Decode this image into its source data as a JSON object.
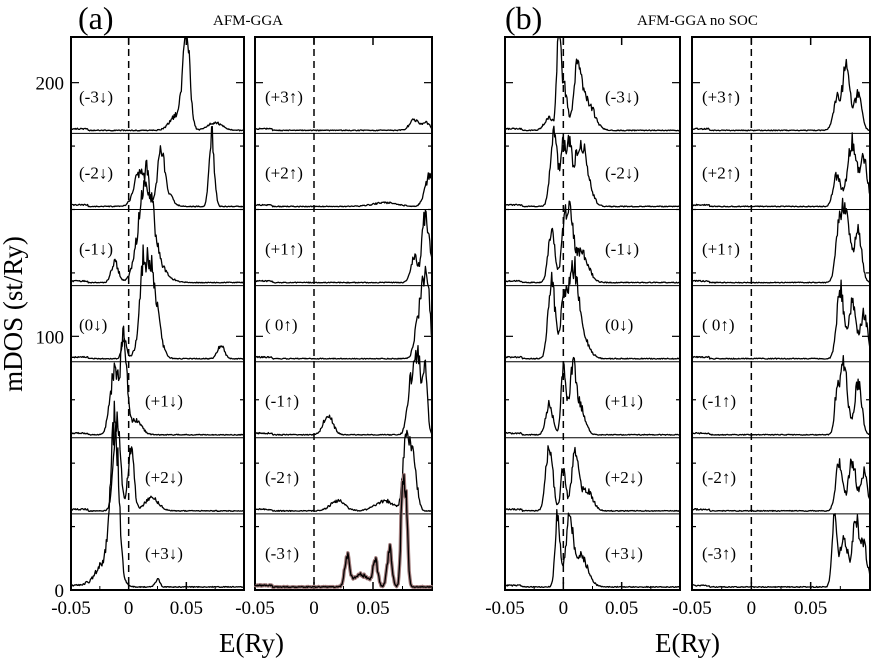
{
  "chart_data": {
    "type": "line",
    "figure_ylabel": "mDOS (st/Ry)",
    "colors": {
      "line": "#000000",
      "overlay": "#a07a7a"
    },
    "y_tick_labels": [
      "0",
      "100",
      "200"
    ],
    "y_ticks": [
      0,
      100,
      200
    ],
    "x_range": [
      -0.05,
      0.1
    ],
    "y_total_range": [
      0,
      218
    ],
    "channel_spacing": 30,
    "x_ticks": [
      -0.05,
      0,
      0.05
    ],
    "x_tick_labels": [
      "-0.05",
      "0",
      "0.05"
    ],
    "groups": [
      {
        "letter": "(a)",
        "title": "AFM-GGA",
        "xlabel": "E(Ry)",
        "panels": [
          {
            "channels": [
              {
                "label": "(-3↓)",
                "baseline": 180,
                "peaks": [
                  [
                    0.05,
                    0.003,
                    38
                  ],
                  [
                    0.042,
                    0.006,
                    6
                  ],
                  [
                    0.075,
                    0.006,
                    3
                  ]
                ]
              },
              {
                "label": "(-2↓)",
                "baseline": 150,
                "peaks": [
                  [
                    0.01,
                    0.005,
                    14
                  ],
                  [
                    0.028,
                    0.003,
                    22
                  ],
                  [
                    0.072,
                    0.0022,
                    28
                  ],
                  [
                    0.035,
                    0.004,
                    4
                  ]
                ]
              },
              {
                "label": "(-1↓)",
                "baseline": 120,
                "peaks": [
                  [
                    0.015,
                    0.006,
                    35
                  ],
                  [
                    -0.012,
                    0.003,
                    8
                  ],
                  [
                    0.02,
                    0.01,
                    8
                  ]
                ]
              },
              {
                "label": "(0↓)",
                "baseline": 90,
                "peaks": [
                  [
                    0.018,
                    0.006,
                    40
                  ],
                  [
                    0.012,
                    0.002,
                    15
                  ],
                  [
                    -0.004,
                    0.002,
                    8
                  ],
                  [
                    0.08,
                    0.003,
                    5
                  ]
                ]
              },
              {
                "label": "(+1↓)",
                "baseline": 60,
                "peaks": [
                  [
                    -0.012,
                    0.004,
                    25
                  ],
                  [
                    -0.004,
                    0.0025,
                    35
                  ],
                  [
                    0.006,
                    0.005,
                    6
                  ]
                ]
              },
              {
                "label": "(+2↓)",
                "baseline": 30,
                "peaks": [
                  [
                    -0.01,
                    0.003,
                    35
                  ],
                  [
                    0.002,
                    0.0025,
                    25
                  ],
                  [
                    0.02,
                    0.006,
                    5
                  ]
                ]
              },
              {
                "label": "(+3↓)",
                "baseline": 0,
                "peaks": [
                  [
                    -0.012,
                    0.0035,
                    58
                  ],
                  [
                    -0.02,
                    0.008,
                    10
                  ],
                  [
                    0.025,
                    0.002,
                    3
                  ]
                ]
              }
            ]
          },
          {
            "channels": [
              {
                "label": "(+3↑)",
                "baseline": 180,
                "peaks": [
                  [
                    0.085,
                    0.004,
                    4
                  ],
                  [
                    0.095,
                    0.003,
                    3
                  ]
                ]
              },
              {
                "label": "(+2↑)",
                "baseline": 150,
                "peaks": [
                  [
                    0.098,
                    0.004,
                    12
                  ],
                  [
                    0.06,
                    0.01,
                    1.5
                  ]
                ]
              },
              {
                "label": "(+1↑)",
                "baseline": 120,
                "peaks": [
                  [
                    0.085,
                    0.003,
                    10
                  ],
                  [
                    0.096,
                    0.003,
                    20
                  ],
                  [
                    0.093,
                    0.002,
                    12
                  ]
                ]
              },
              {
                "label": "( 0↑)",
                "baseline": 90,
                "peaks": [
                  [
                    0.088,
                    0.003,
                    14
                  ],
                  [
                    0.096,
                    0.0025,
                    28
                  ],
                  [
                    0.092,
                    0.002,
                    18
                  ]
                ]
              },
              {
                "label": "(-1↑)",
                "baseline": 60,
                "peaks": [
                  [
                    0.012,
                    0.004,
                    8
                  ],
                  [
                    0.082,
                    0.003,
                    20
                  ],
                  [
                    0.088,
                    0.0025,
                    30
                  ],
                  [
                    0.094,
                    0.002,
                    25
                  ]
                ]
              },
              {
                "label": "(-2↑)",
                "baseline": 30,
                "peaks": [
                  [
                    0.02,
                    0.006,
                    4
                  ],
                  [
                    0.06,
                    0.008,
                    4
                  ],
                  [
                    0.078,
                    0.0025,
                    30
                  ],
                  [
                    0.084,
                    0.003,
                    20
                  ]
                ]
              },
              {
                "label": "(-3↑)",
                "baseline": 0,
                "peaks": [
                  [
                    0.028,
                    0.002,
                    12
                  ],
                  [
                    0.052,
                    0.002,
                    10
                  ],
                  [
                    0.064,
                    0.002,
                    15
                  ],
                  [
                    0.075,
                    0.0015,
                    35
                  ],
                  [
                    0.078,
                    0.0015,
                    32
                  ],
                  [
                    0.04,
                    0.006,
                    5
                  ]
                ],
                "overlay": true
              }
            ]
          }
        ]
      },
      {
        "letter": "(b)",
        "title": "AFM-GGA no SOC",
        "xlabel": "E(Ry)",
        "panels": [
          {
            "channels": [
              {
                "label": "(-3↓)",
                "baseline": 180,
                "peaks": [
                  [
                    -0.004,
                    0.0015,
                    40
                  ],
                  [
                    0.0,
                    0.003,
                    18
                  ],
                  [
                    0.012,
                    0.003,
                    22
                  ],
                  [
                    0.02,
                    0.006,
                    12
                  ],
                  [
                    -0.012,
                    0.004,
                    5
                  ]
                ]
              },
              {
                "label": "(-2↓)",
                "baseline": 150,
                "peaks": [
                  [
                    -0.008,
                    0.003,
                    30
                  ],
                  [
                    0.0,
                    0.002,
                    22
                  ],
                  [
                    0.015,
                    0.006,
                    25
                  ],
                  [
                    0.005,
                    0.002,
                    18
                  ]
                ]
              },
              {
                "label": "(-1↓)",
                "baseline": 120,
                "peaks": [
                  [
                    -0.01,
                    0.003,
                    20
                  ],
                  [
                    0.005,
                    0.003,
                    28
                  ],
                  [
                    0.015,
                    0.006,
                    12
                  ],
                  [
                    0.0,
                    0.002,
                    15
                  ]
                ]
              },
              {
                "label": "(0↓)",
                "baseline": 90,
                "peaks": [
                  [
                    -0.01,
                    0.003,
                    30
                  ],
                  [
                    0.0,
                    0.0025,
                    20
                  ],
                  [
                    0.008,
                    0.004,
                    32
                  ],
                  [
                    0.015,
                    0.006,
                    10
                  ]
                ]
              },
              {
                "label": "(+1↓)",
                "baseline": 60,
                "peaks": [
                  [
                    -0.012,
                    0.003,
                    12
                  ],
                  [
                    0.0,
                    0.002,
                    25
                  ],
                  [
                    0.008,
                    0.003,
                    25
                  ],
                  [
                    0.015,
                    0.004,
                    10
                  ]
                ]
              },
              {
                "label": "(+2↓)",
                "baseline": 30,
                "peaks": [
                  [
                    -0.012,
                    0.003,
                    25
                  ],
                  [
                    0.0,
                    0.002,
                    18
                  ],
                  [
                    0.01,
                    0.003,
                    22
                  ],
                  [
                    0.02,
                    0.005,
                    8
                  ]
                ]
              },
              {
                "label": "(+3↓)",
                "baseline": 0,
                "peaks": [
                  [
                    -0.005,
                    0.002,
                    30
                  ],
                  [
                    0.005,
                    0.003,
                    25
                  ],
                  [
                    0.015,
                    0.006,
                    12
                  ]
                ]
              }
            ]
          },
          {
            "channels": [
              {
                "label": "(+3↑)",
                "baseline": 180,
                "peaks": [
                  [
                    0.072,
                    0.003,
                    12
                  ],
                  [
                    0.08,
                    0.003,
                    25
                  ],
                  [
                    0.09,
                    0.003,
                    15
                  ]
                ]
              },
              {
                "label": "(+2↑)",
                "baseline": 150,
                "peaks": [
                  [
                    0.072,
                    0.003,
                    12
                  ],
                  [
                    0.085,
                    0.004,
                    25
                  ],
                  [
                    0.095,
                    0.003,
                    18
                  ]
                ]
              },
              {
                "label": "(+1↑)",
                "baseline": 120,
                "peaks": [
                  [
                    0.074,
                    0.003,
                    22
                  ],
                  [
                    0.08,
                    0.003,
                    28
                  ],
                  [
                    0.09,
                    0.003,
                    20
                  ]
                ]
              },
              {
                "label": "( 0↑)",
                "baseline": 90,
                "peaks": [
                  [
                    0.075,
                    0.003,
                    28
                  ],
                  [
                    0.085,
                    0.003,
                    22
                  ],
                  [
                    0.095,
                    0.003,
                    18
                  ]
                ]
              },
              {
                "label": "(-1↑)",
                "baseline": 60,
                "peaks": [
                  [
                    0.072,
                    0.002,
                    15
                  ],
                  [
                    0.078,
                    0.003,
                    28
                  ],
                  [
                    0.09,
                    0.003,
                    20
                  ]
                ]
              },
              {
                "label": "(-2↑)",
                "baseline": 30,
                "peaks": [
                  [
                    0.074,
                    0.003,
                    18
                  ],
                  [
                    0.085,
                    0.003,
                    20
                  ],
                  [
                    0.095,
                    0.003,
                    15
                  ]
                ]
              },
              {
                "label": "(-3↑)",
                "baseline": 0,
                "peaks": [
                  [
                    0.07,
                    0.002,
                    30
                  ],
                  [
                    0.078,
                    0.003,
                    20
                  ],
                  [
                    0.088,
                    0.003,
                    25
                  ],
                  [
                    0.095,
                    0.003,
                    15
                  ]
                ]
              }
            ]
          }
        ]
      }
    ]
  }
}
